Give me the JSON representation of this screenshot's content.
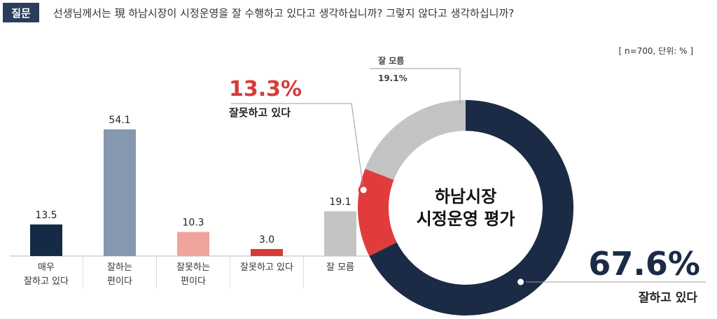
{
  "header": {
    "badge": "질문",
    "question": "선생님께서는 現 하남시장이 시정운영을 잘 수행하고 있다고 생각하십니까? 그렇지 않다고 생각하십니까?"
  },
  "note": "[ n=700, 단위: % ]",
  "colors": {
    "very_good": "#152a45",
    "good": "#8697b0",
    "bad": "#f0a49b",
    "very_bad": "#d93a3a",
    "unknown": "#c4c4c4",
    "donut_good": "#1b2b45",
    "donut_bad": "#e03c3c",
    "donut_unknown": "#c4c4c4"
  },
  "chart_data": [
    {
      "type": "bar",
      "categories": [
        "매우\n잘하고 있다",
        "잘하는\n편이다",
        "잘못하는\n편이다",
        "잘못하고 있다",
        "잘 모름"
      ],
      "values": [
        13.5,
        54.1,
        10.3,
        3.0,
        19.1
      ],
      "value_labels": [
        "13.5",
        "54.1",
        "10.3",
        "3.0",
        "19.1"
      ]
    },
    {
      "type": "pie",
      "title": "하남시장\n시정운영 평가",
      "slices": [
        {
          "label": "잘하고 있다",
          "value": 67.6,
          "display": "67.6%"
        },
        {
          "label": "잘못하고 있다",
          "value": 13.3,
          "display": "13.3%"
        },
        {
          "label": "잘 모름",
          "value": 19.1,
          "display": "19.1%"
        }
      ]
    }
  ]
}
